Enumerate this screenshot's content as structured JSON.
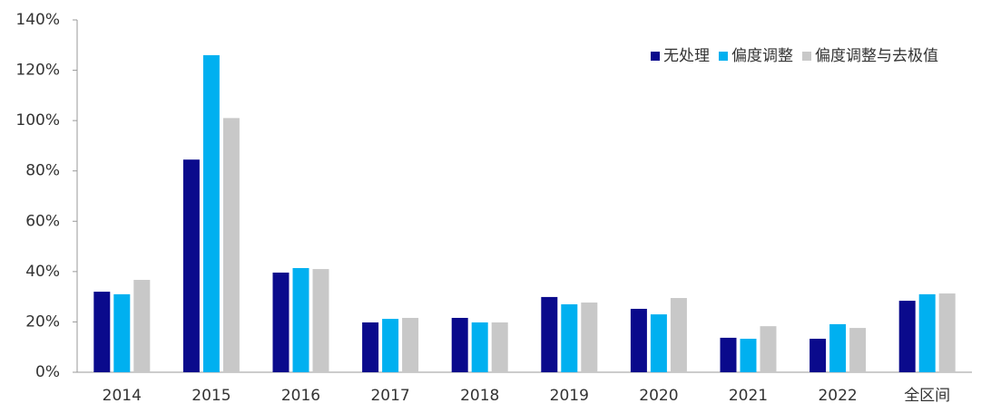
{
  "chart_data": {
    "type": "bar",
    "categories": [
      "2014",
      "2015",
      "2016",
      "2017",
      "2018",
      "2019",
      "2020",
      "2021",
      "2022",
      "全区间"
    ],
    "series": [
      {
        "name": "无处理",
        "color": "#0a0a8c",
        "values": [
          32,
          84.5,
          39.6,
          19.8,
          21.6,
          29.9,
          25.2,
          13.7,
          13.3,
          28.4
        ]
      },
      {
        "name": "偏度调整",
        "color": "#00b0f0",
        "values": [
          31,
          126,
          41.4,
          21.2,
          19.8,
          27,
          23,
          13.3,
          19.1,
          31
        ]
      },
      {
        "name": "偏度调整与去极值",
        "color": "#c8c8c8",
        "values": [
          36.7,
          101,
          41,
          21.6,
          19.8,
          27.7,
          29.5,
          18.3,
          17.6,
          31.3
        ]
      }
    ],
    "ylim": [
      0,
      140
    ],
    "yticks": [
      {
        "value": 0,
        "label": "0%"
      },
      {
        "value": 20,
        "label": "20%"
      },
      {
        "value": 40,
        "label": "40%"
      },
      {
        "value": 60,
        "label": "60%"
      },
      {
        "value": 80,
        "label": "80%"
      },
      {
        "value": 100,
        "label": "100%"
      },
      {
        "value": 120,
        "label": "120%"
      },
      {
        "value": 140,
        "label": "140%"
      }
    ],
    "legend": "top-right"
  }
}
